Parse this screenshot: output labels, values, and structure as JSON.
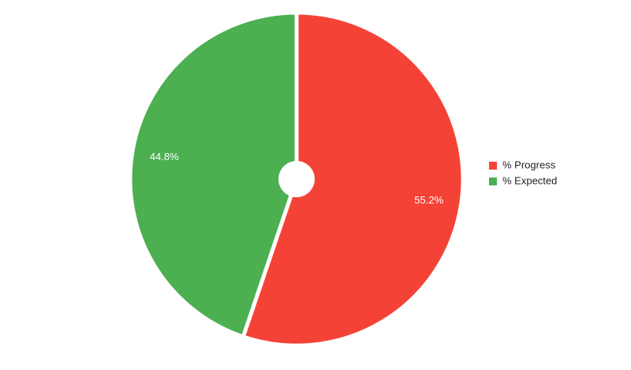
{
  "chart_data": {
    "type": "pie",
    "categories": [
      "% Progress",
      "% Expected"
    ],
    "values": [
      55.2,
      44.8
    ],
    "value_labels": [
      "55.2%",
      "44.8%"
    ],
    "colors": [
      "#f44336",
      "#4caf50"
    ],
    "legend": "right"
  }
}
